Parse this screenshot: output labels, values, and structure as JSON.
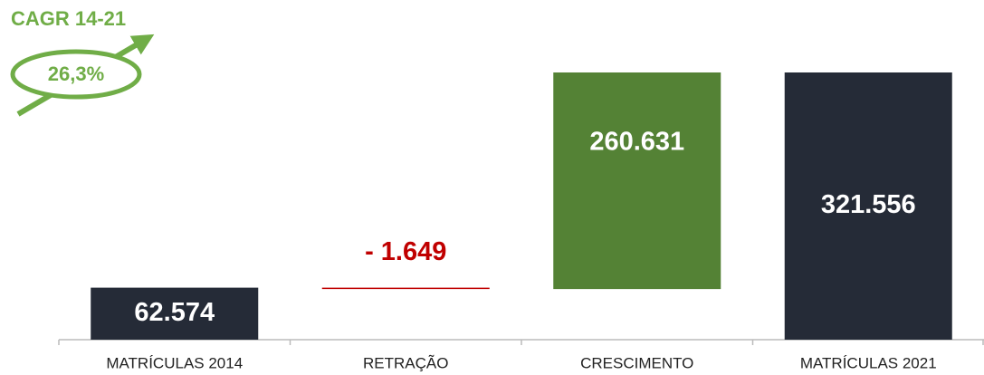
{
  "chart_data": {
    "type": "waterfall",
    "categories": [
      "MATRÍCULAS 2014",
      "RETRAÇÃO",
      "CRESCIMENTO",
      "MATRÍCULAS 2021"
    ],
    "values": [
      62574,
      -1649,
      260631,
      321556
    ],
    "value_labels": [
      "62.574",
      "- 1.649",
      "260.631",
      "321.556"
    ],
    "measure": [
      "absolute",
      "relative",
      "relative",
      "absolute"
    ],
    "colors": [
      "#252b37",
      "#c00000",
      "#548235",
      "#252b37"
    ],
    "label_colors": [
      "#ffffff",
      "#c00000",
      "#ffffff",
      "#ffffff"
    ],
    "annotation": {
      "title": "CAGR 14-21",
      "value": "26,3%",
      "color": "#70ad47"
    }
  }
}
